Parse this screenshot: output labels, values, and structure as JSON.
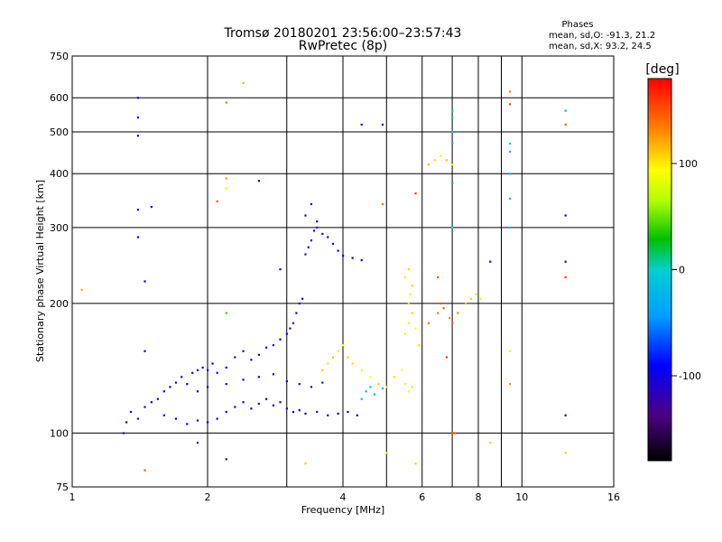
{
  "chart_data": {
    "type": "scatter",
    "title": "Tromsø 20180201 23:56:00–23:57:43",
    "subtitle": "RwPretec (8p)",
    "xlabel": "Frequency [MHz]",
    "ylabel": "Stationary phase Virtual Height [km]",
    "x_scale": "log",
    "y_scale": "log",
    "xlim": [
      1,
      16
    ],
    "ylim": [
      75,
      750
    ],
    "x_ticks": [
      1,
      2,
      4,
      6,
      8,
      10,
      16
    ],
    "x_tick_labels": [
      "1",
      "2",
      "4",
      "6",
      "8",
      "10",
      "16"
    ],
    "x_minor_grid": [
      3,
      5,
      7,
      9
    ],
    "y_ticks": [
      75,
      100,
      200,
      300,
      400,
      500,
      600,
      750
    ],
    "y_tick_labels": [
      "75",
      "100",
      "200",
      "300",
      "400",
      "500",
      "600",
      "750"
    ],
    "grid": true,
    "stats": {
      "title": "Phases",
      "line_o": "mean, sd,O: -91.3, 21.2",
      "line_x": "mean, sd,X:  93.2, 24.5"
    },
    "colorbar": {
      "label": "[deg]",
      "range": [
        -180,
        180
      ],
      "tick_values": [
        100,
        0,
        -100
      ],
      "tick_labels": [
        "100",
        "0",
        "-100"
      ]
    },
    "series": [
      {
        "name": "echoes",
        "points": [
          [
            1.3,
            100,
            -110
          ],
          [
            1.32,
            106,
            -115
          ],
          [
            1.35,
            112,
            -105
          ],
          [
            1.4,
            108,
            -120
          ],
          [
            1.45,
            115,
            -100
          ],
          [
            1.5,
            118,
            -95
          ],
          [
            1.55,
            120,
            -110
          ],
          [
            1.6,
            125,
            -100
          ],
          [
            1.65,
            128,
            -90
          ],
          [
            1.7,
            131,
            -105
          ],
          [
            1.75,
            135,
            -110
          ],
          [
            1.8,
            130,
            -95
          ],
          [
            1.85,
            138,
            -100
          ],
          [
            1.9,
            140,
            -120
          ],
          [
            1.95,
            142,
            -110
          ],
          [
            2.0,
            140,
            -90
          ],
          [
            2.05,
            145,
            -100
          ],
          [
            2.1,
            138,
            -105
          ],
          [
            2.2,
            142,
            -95
          ],
          [
            2.3,
            150,
            -110
          ],
          [
            2.4,
            155,
            -100
          ],
          [
            2.5,
            148,
            -120
          ],
          [
            2.6,
            152,
            -105
          ],
          [
            2.7,
            158,
            -100
          ],
          [
            2.8,
            160,
            -110
          ],
          [
            2.9,
            165,
            -95
          ],
          [
            3.0,
            170,
            -100
          ],
          [
            3.05,
            175,
            -105
          ],
          [
            3.1,
            180,
            -115
          ],
          [
            3.15,
            190,
            -95
          ],
          [
            3.2,
            200,
            -120
          ],
          [
            3.25,
            205,
            -110
          ],
          [
            1.6,
            110,
            -100
          ],
          [
            1.7,
            108,
            -105
          ],
          [
            1.8,
            105,
            -95
          ],
          [
            1.9,
            107,
            -110
          ],
          [
            2.0,
            106,
            -100
          ],
          [
            2.1,
            108,
            -90
          ],
          [
            2.2,
            112,
            -105
          ],
          [
            2.3,
            115,
            -100
          ],
          [
            2.4,
            118,
            -110
          ],
          [
            2.5,
            114,
            -95
          ],
          [
            2.6,
            117,
            -105
          ],
          [
            2.7,
            120,
            -100
          ],
          [
            2.8,
            116,
            -115
          ],
          [
            2.9,
            118,
            -100
          ],
          [
            3.0,
            114,
            -105
          ],
          [
            3.1,
            112,
            -95
          ],
          [
            3.2,
            113,
            -100
          ],
          [
            3.3,
            111,
            -110
          ],
          [
            3.5,
            112,
            -105
          ],
          [
            3.7,
            110,
            -100
          ],
          [
            3.9,
            111,
            -95
          ],
          [
            4.1,
            112,
            -100
          ],
          [
            4.3,
            110,
            -90
          ],
          [
            1.9,
            125,
            -110
          ],
          [
            2.0,
            128,
            -105
          ],
          [
            2.2,
            130,
            -100
          ],
          [
            2.4,
            133,
            -95
          ],
          [
            2.6,
            135,
            -105
          ],
          [
            2.8,
            137,
            -100
          ],
          [
            3.0,
            132,
            -110
          ],
          [
            3.2,
            130,
            -95
          ],
          [
            3.4,
            128,
            -120
          ],
          [
            3.6,
            131,
            -85
          ],
          [
            3.3,
            260,
            -125
          ],
          [
            3.35,
            270,
            -120
          ],
          [
            3.4,
            280,
            -115
          ],
          [
            3.45,
            295,
            -118
          ],
          [
            3.5,
            300,
            -122
          ],
          [
            3.3,
            320,
            -125
          ],
          [
            3.4,
            340,
            -120
          ],
          [
            3.5,
            310,
            -118
          ],
          [
            3.6,
            290,
            -110
          ],
          [
            3.7,
            285,
            -105
          ],
          [
            3.8,
            275,
            -100
          ],
          [
            3.9,
            265,
            -95
          ],
          [
            4.0,
            258,
            -90
          ],
          [
            4.2,
            255,
            -95
          ],
          [
            4.4,
            252,
            -100
          ],
          [
            3.6,
            140,
            110
          ],
          [
            3.7,
            145,
            105
          ],
          [
            3.8,
            150,
            115
          ],
          [
            3.9,
            155,
            100
          ],
          [
            4.0,
            160,
            95
          ],
          [
            4.1,
            150,
            110
          ],
          [
            4.2,
            145,
            105
          ],
          [
            4.4,
            140,
            100
          ],
          [
            4.6,
            135,
            95
          ],
          [
            4.8,
            130,
            110
          ],
          [
            5.0,
            128,
            100
          ],
          [
            5.2,
            135,
            105
          ],
          [
            5.4,
            140,
            95
          ],
          [
            5.5,
            170,
            90
          ],
          [
            5.6,
            180,
            100
          ],
          [
            5.7,
            190,
            110
          ],
          [
            5.8,
            175,
            95
          ],
          [
            5.9,
            160,
            105
          ],
          [
            5.6,
            200,
            105
          ],
          [
            5.65,
            210,
            98
          ],
          [
            5.7,
            220,
            112
          ],
          [
            5.5,
            230,
            102
          ],
          [
            5.6,
            240,
            108
          ],
          [
            5.5,
            130,
            100
          ],
          [
            5.6,
            125,
            95
          ],
          [
            5.7,
            128,
            105
          ],
          [
            4.4,
            120,
            -20
          ],
          [
            4.5,
            125,
            -30
          ],
          [
            4.6,
            128,
            -15
          ],
          [
            4.7,
            123,
            -25
          ],
          [
            4.9,
            127,
            -20
          ],
          [
            6.5,
            190,
            140
          ],
          [
            6.7,
            195,
            150
          ],
          [
            6.9,
            185,
            130
          ],
          [
            7.0,
            180,
            145
          ],
          [
            7.2,
            190,
            135
          ],
          [
            7.5,
            200,
            115
          ],
          [
            7.7,
            205,
            110
          ],
          [
            7.9,
            210,
            105
          ],
          [
            8.1,
            205,
            100
          ],
          [
            6.2,
            420,
            120
          ],
          [
            6.4,
            430,
            110
          ],
          [
            6.6,
            440,
            100
          ],
          [
            6.8,
            430,
            115
          ],
          [
            7.0,
            420,
            105
          ],
          [
            7.0,
            470,
            -30
          ],
          [
            7.0,
            500,
            -10
          ],
          [
            7.0,
            540,
            -20
          ],
          [
            7.0,
            560,
            -5
          ],
          [
            7.0,
            380,
            20
          ],
          [
            9.4,
            300,
            -10
          ],
          [
            9.4,
            350,
            -20
          ],
          [
            9.4,
            400,
            -15
          ],
          [
            9.4,
            450,
            -25
          ],
          [
            9.4,
            470,
            -5
          ],
          [
            12.5,
            250,
            -120
          ],
          [
            12.5,
            320,
            -100
          ],
          [
            12.5,
            560,
            -30
          ],
          [
            12.5,
            520,
            150
          ],
          [
            12.5,
            230,
            160
          ],
          [
            1.4,
            600,
            -120
          ],
          [
            1.4,
            540,
            -110
          ],
          [
            1.4,
            490,
            -115
          ],
          [
            1.4,
            330,
            -100
          ],
          [
            1.4,
            285,
            -95
          ],
          [
            1.45,
            225,
            -90
          ],
          [
            1.45,
            155,
            -105
          ],
          [
            1.5,
            335,
            -100
          ],
          [
            1.05,
            215,
            120
          ],
          [
            2.4,
            650,
            120
          ],
          [
            2.2,
            585,
            140
          ],
          [
            2.2,
            390,
            130
          ],
          [
            2.2,
            370,
            100
          ],
          [
            2.2,
            190,
            40
          ],
          [
            2.1,
            345,
            150
          ],
          [
            2.6,
            385,
            -120
          ],
          [
            2.9,
            240,
            -100
          ],
          [
            4.4,
            520,
            -100
          ],
          [
            4.9,
            520,
            -130
          ],
          [
            4.9,
            340,
            140
          ],
          [
            5.8,
            360,
            160
          ],
          [
            3.3,
            85,
            110
          ],
          [
            5.0,
            90,
            100
          ],
          [
            5.8,
            85,
            110
          ],
          [
            2.2,
            87,
            -150
          ],
          [
            1.9,
            95,
            -130
          ],
          [
            1.45,
            82,
            150
          ],
          [
            8.5,
            95,
            110
          ],
          [
            12.5,
            90,
            110
          ],
          [
            12.5,
            110,
            -140
          ],
          [
            9.4,
            130,
            130
          ],
          [
            9.4,
            155,
            100
          ],
          [
            7.0,
            100,
            150
          ],
          [
            7.1,
            100,
            150
          ],
          [
            6.8,
            150,
            160
          ],
          [
            6.6,
            200,
            150
          ],
          [
            6.2,
            180,
            140
          ],
          [
            6.5,
            230,
            150
          ],
          [
            7.0,
            300,
            -5
          ],
          [
            8.5,
            250,
            -100
          ],
          [
            9.4,
            580,
            160
          ],
          [
            9.4,
            620,
            140
          ]
        ]
      }
    ]
  }
}
